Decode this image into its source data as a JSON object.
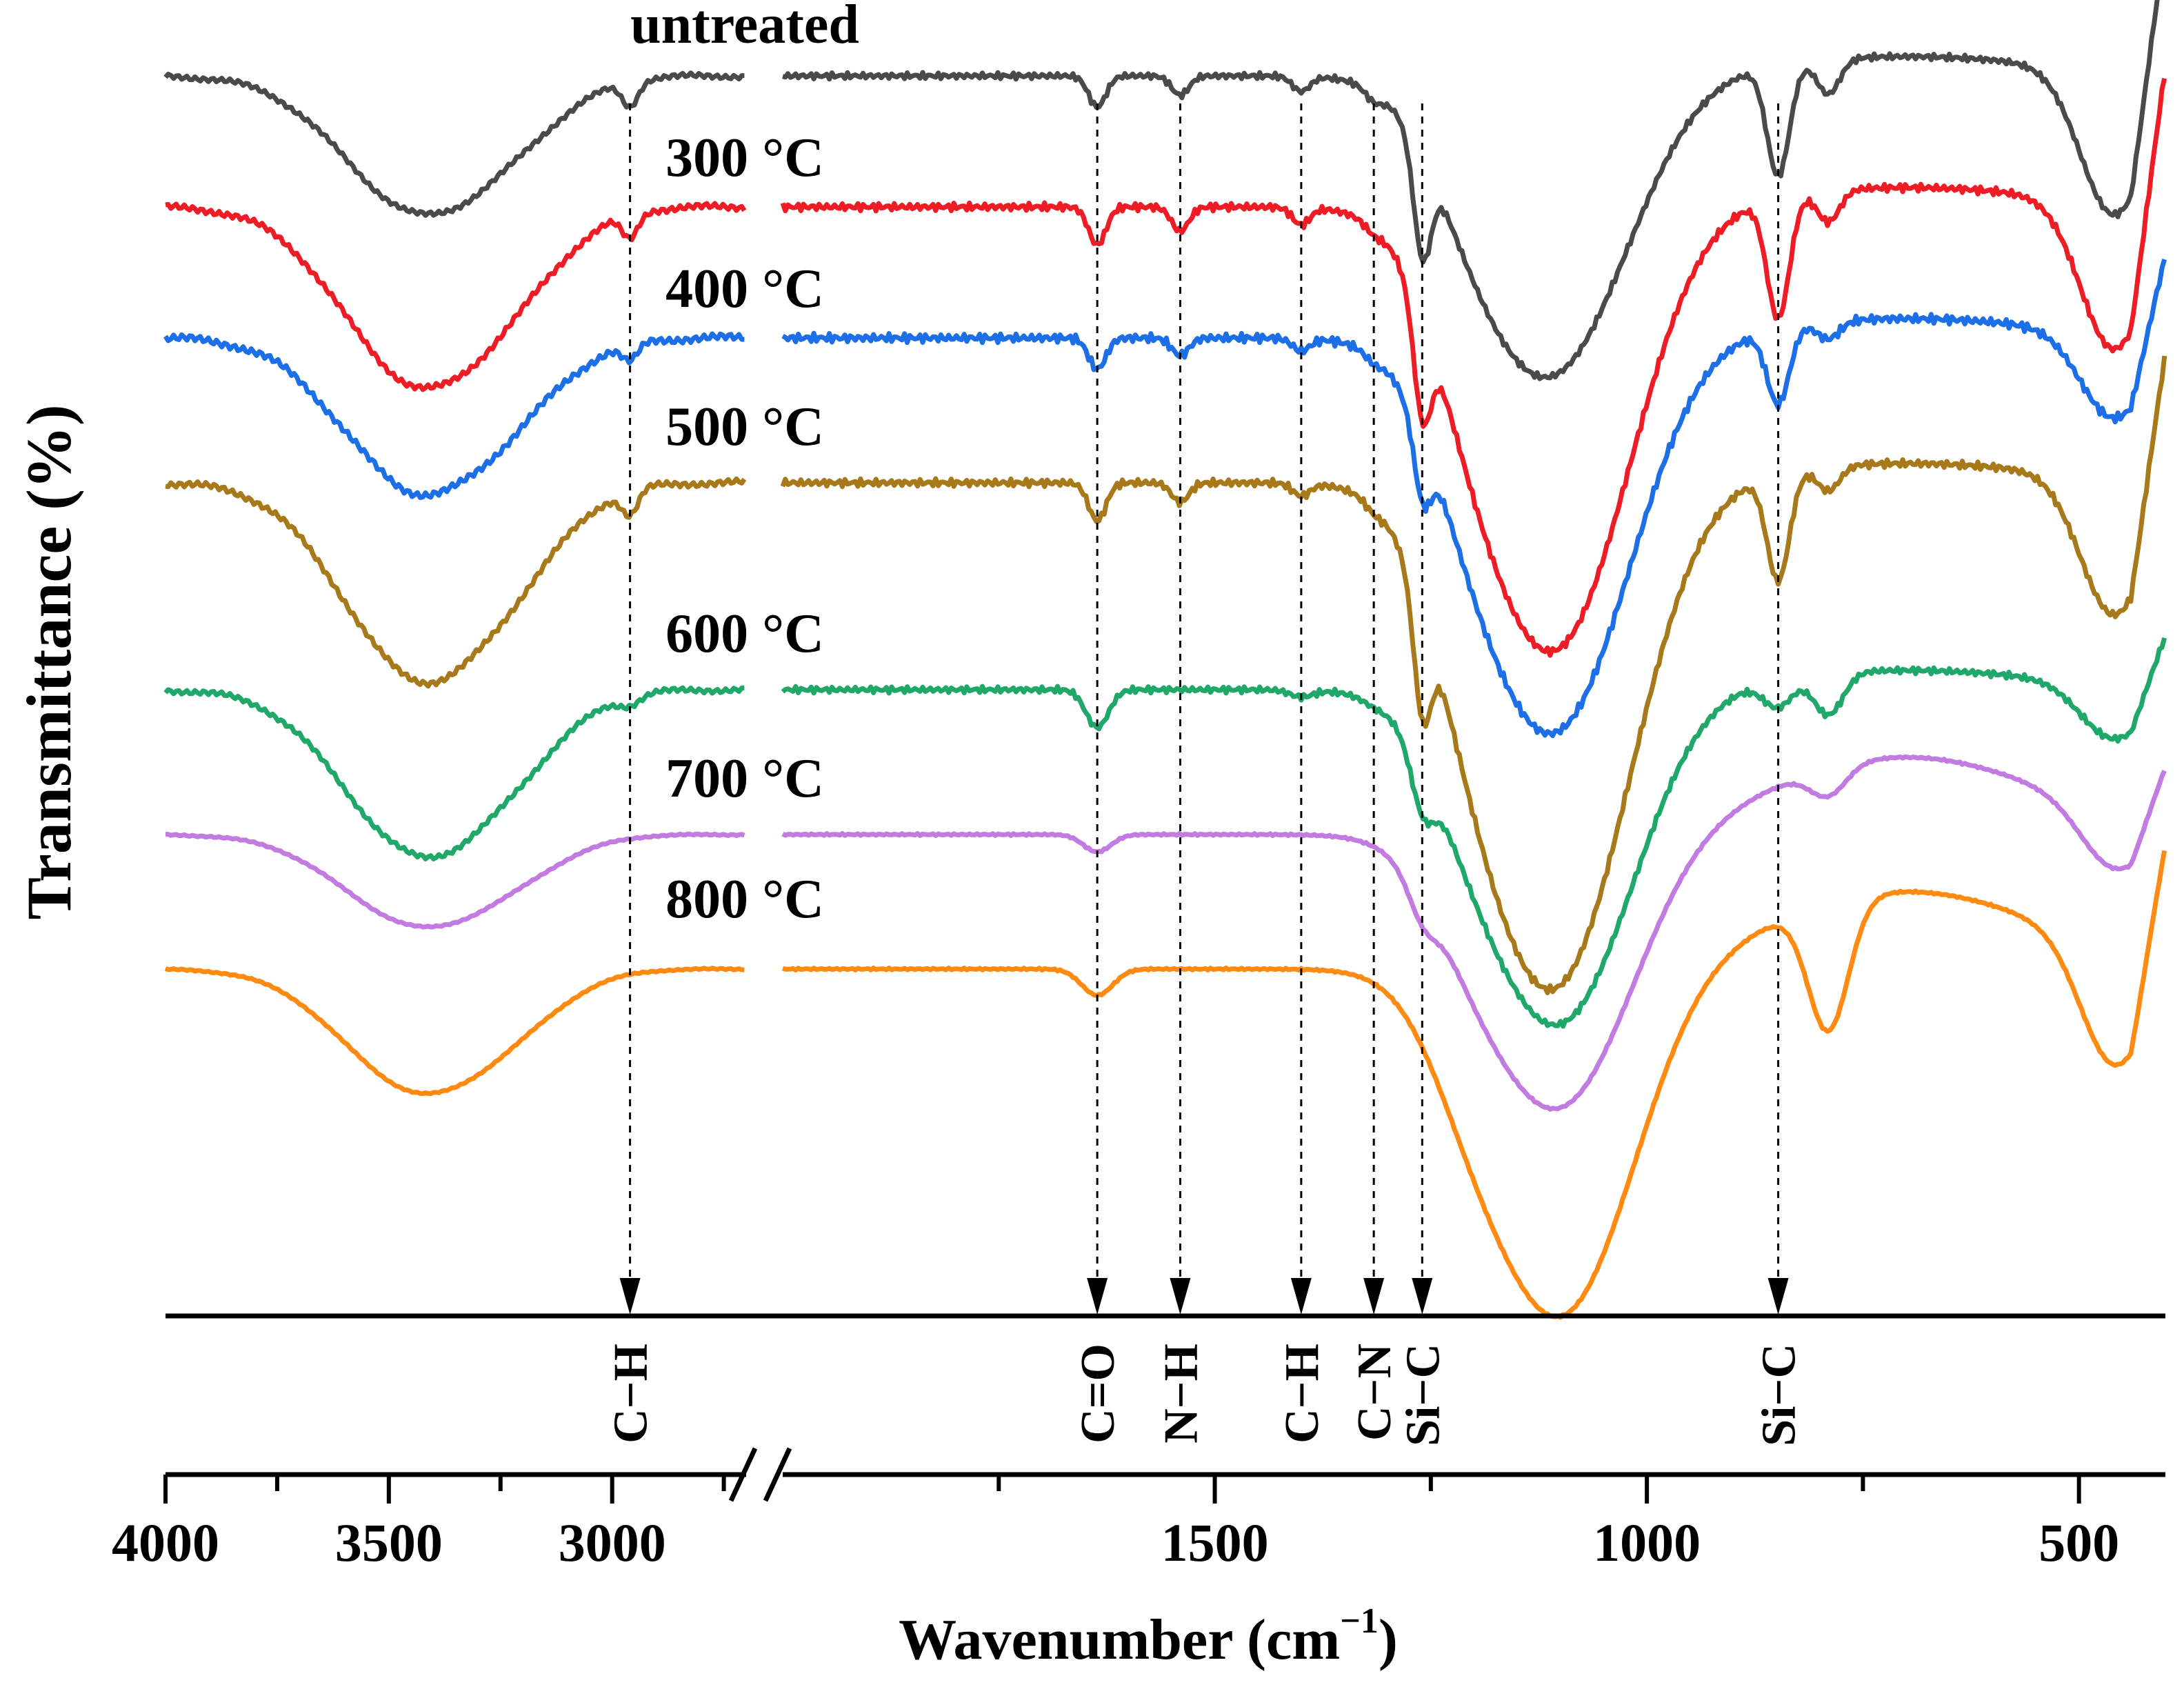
{
  "chart_data": {
    "type": "line",
    "xlabel": "Wavenumber (cm",
    "xlabel_sup": "−1",
    "xlabel_end": ")",
    "ylabel": "Transmittance (%)",
    "x_reversed": true,
    "x_axis_break": true,
    "x_ticks": [
      "4000",
      "3500",
      "3000",
      "1500",
      "1000",
      "500"
    ],
    "series": [
      {
        "name": "untreated",
        "color": "#4a4a4a"
      },
      {
        "name": "300 °C",
        "color": "#ee1c25"
      },
      {
        "name": "400 °C",
        "color": "#1c6fe6"
      },
      {
        "name": "500 °C",
        "color": "#a8791a"
      },
      {
        "name": "600 °C",
        "color": "#1fa86a"
      },
      {
        "name": "700 °C",
        "color": "#c27be0"
      },
      {
        "name": "800 °C",
        "color": "#ff8a12"
      }
    ],
    "band_markers": [
      {
        "label": "C−H",
        "wavenumber": 2960
      },
      {
        "label": "C=O",
        "wavenumber": 1636
      },
      {
        "label": "N−H",
        "wavenumber": 1540
      },
      {
        "label": "C−H",
        "wavenumber": 1400
      },
      {
        "label": "C−N",
        "wavenumber": 1316
      },
      {
        "label": "Si−C",
        "wavenumber": 1260
      },
      {
        "label": "Si−C",
        "wavenumber": 848
      }
    ],
    "grid": false,
    "legend": "labels above each curve"
  }
}
